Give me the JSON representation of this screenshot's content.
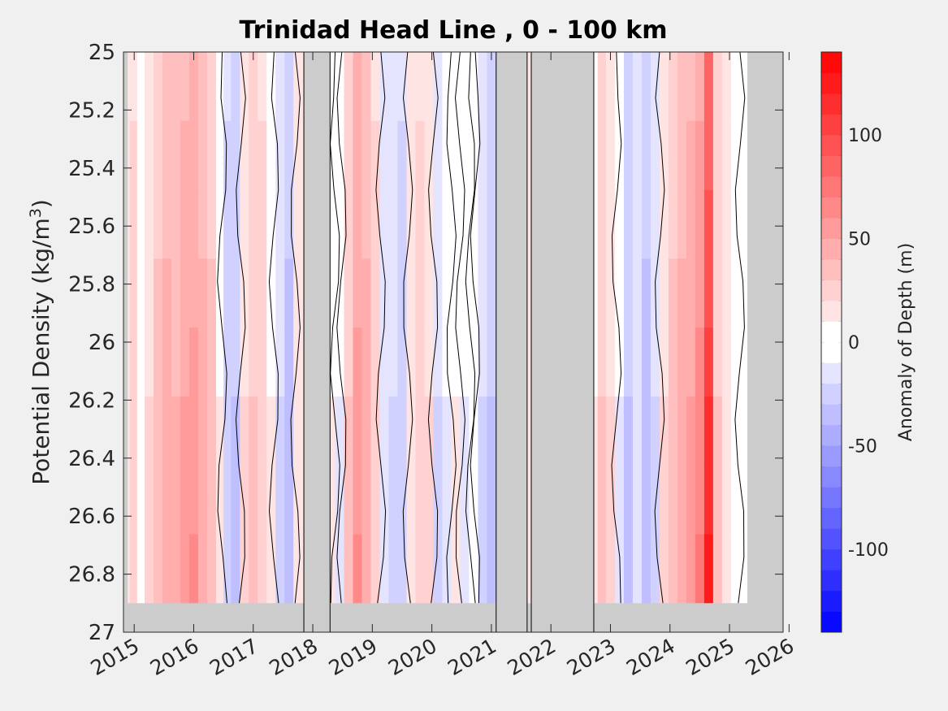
{
  "chart_data": {
    "type": "heatmap",
    "title": "Trinidad Head Line , 0 - 100 km",
    "ylabel_main": "Potential Density (kg/m",
    "ylabel_sup": "3",
    "ylabel_close": ")",
    "x_ticks": [
      "2015",
      "2016",
      "2017",
      "2018",
      "2019",
      "2020",
      "2021",
      "2022",
      "2023",
      "2024",
      "2025",
      "2026"
    ],
    "y_ticks": [
      "25",
      "25.2",
      "25.4",
      "25.6",
      "25.8",
      "26",
      "26.2",
      "26.4",
      "26.6",
      "26.8",
      "27"
    ],
    "xlim": [
      2014.82,
      2025.9
    ],
    "ylim": [
      25,
      27
    ],
    "y_reversed": true,
    "colorbar": {
      "label": "Anomaly of Depth (m)",
      "ticks": [
        "100",
        "50",
        "0",
        "-50",
        "-100"
      ],
      "tick_values": [
        100,
        50,
        0,
        -50,
        -100
      ],
      "range": [
        -140,
        140
      ],
      "step": 10,
      "color_low": "#0000ff",
      "color_high": "#ff0000"
    },
    "bottom_data_limit": 26.9,
    "no_data_periods": [
      [
        2014.82,
        2014.89
      ],
      [
        2017.85,
        2018.29
      ],
      [
        2021.08,
        2021.6
      ],
      [
        2021.67,
        2022.72
      ],
      [
        2025.3,
        2025.9
      ]
    ],
    "gap_outlines": [
      [
        2017.85,
        2018.29
      ],
      [
        2021.08,
        2021.6
      ],
      [
        2021.67,
        2022.72
      ]
    ],
    "anomaly_series_time": [
      2014.85,
      2015.0,
      2015.1,
      2015.25,
      2015.4,
      2015.55,
      2015.7,
      2015.85,
      2016.0,
      2016.15,
      2016.3,
      2016.45,
      2016.55,
      2016.7,
      2016.85,
      2017.0,
      2017.15,
      2017.3,
      2017.45,
      2017.6,
      2017.75,
      2018.3,
      2018.45,
      2018.6,
      2018.75,
      2018.9,
      2019.05,
      2019.2,
      2019.35,
      2019.5,
      2019.65,
      2019.8,
      2019.95,
      2020.1,
      2020.25,
      2020.4,
      2020.55,
      2020.7,
      2020.85,
      2021.0,
      2021.6,
      2022.72,
      2022.85,
      2023.0,
      2023.15,
      2023.3,
      2023.45,
      2023.6,
      2023.75,
      2023.9,
      2024.05,
      2024.2,
      2024.35,
      2024.5,
      2024.65,
      2024.8,
      2024.95,
      2025.1,
      2025.25
    ],
    "anomaly_series_values": [
      15,
      25,
      5,
      20,
      35,
      45,
      40,
      50,
      55,
      45,
      35,
      10,
      -25,
      -30,
      20,
      30,
      25,
      10,
      -20,
      -35,
      15,
      10,
      -10,
      30,
      55,
      45,
      25,
      -15,
      -20,
      -25,
      15,
      25,
      20,
      -20,
      -10,
      10,
      -10,
      5,
      -20,
      -30,
      15,
      10,
      30,
      20,
      -10,
      -30,
      -15,
      -35,
      -20,
      20,
      35,
      45,
      50,
      65,
      110,
      30,
      15,
      5,
      -5
    ]
  }
}
